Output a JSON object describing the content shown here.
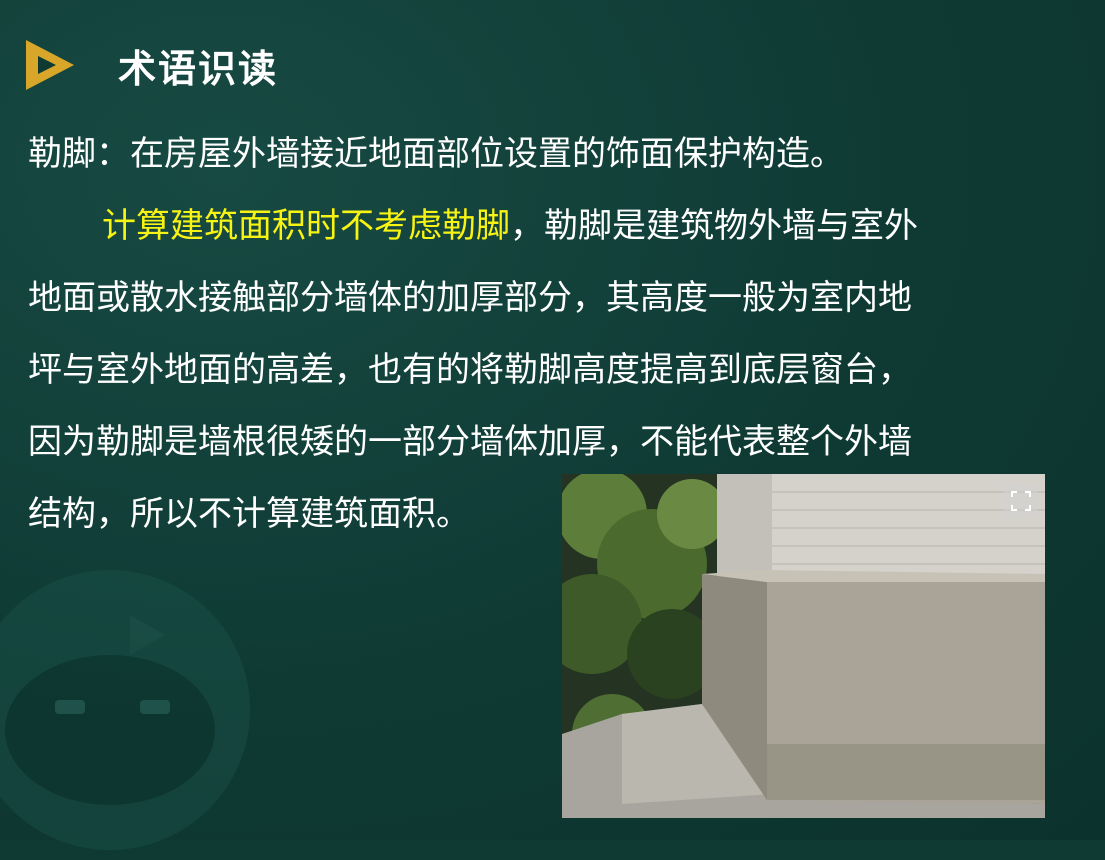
{
  "slide": {
    "title": "术语识读",
    "definition": "勒脚：在房屋外墙接近地面部位设置的饰面保护构造。",
    "highlight": "计算建筑面积时不考虑勒脚",
    "para_line1_rest": "，勒脚是建筑物外墙与室外",
    "para_line2": "地面或散水接触部分墙体的加厚部分，其高度一般为室内地",
    "para_line3": "坪与室外地面的高差，也有的将勒脚高度提高到底层窗台，",
    "para_line4": "因为勒脚是墙根很矮的一部分墙体加厚，不能代表整个外墙",
    "para_line5": "结构，所以不计算建筑面积。"
  },
  "colors": {
    "background": "#0f3a34",
    "text": "#ffffff",
    "highlight": "#f7f312",
    "logo": "#d8a72a"
  },
  "icons": {
    "logo": "play-triangle-icon",
    "expand": "expand-icon"
  }
}
